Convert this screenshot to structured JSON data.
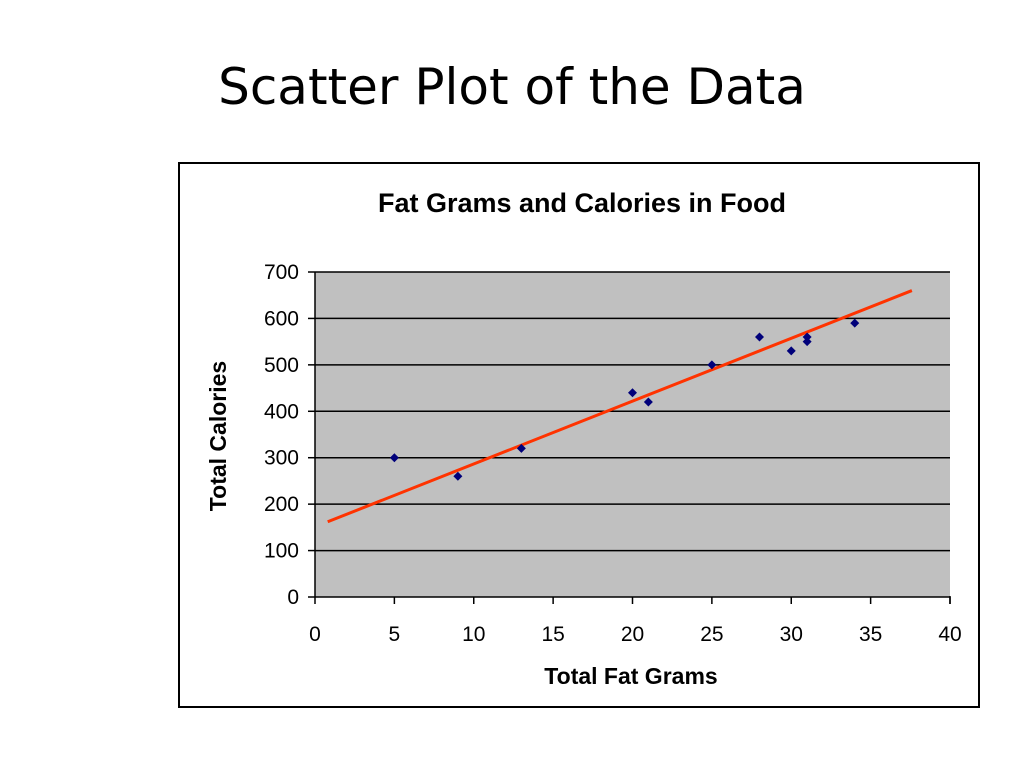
{
  "slide": {
    "title": "Scatter Plot of the Data"
  },
  "colors": {
    "plot_background": "#c0c0c0",
    "point": "#00007a",
    "trendline": "#ff3300",
    "gridline": "#000000"
  },
  "chart_data": {
    "type": "scatter",
    "title": "Fat Grams and Calories in Food",
    "xlabel": "Total Fat Grams",
    "ylabel": "Total Calories",
    "xlim": [
      0,
      40
    ],
    "ylim": [
      0,
      700
    ],
    "xticks": [
      0,
      5,
      10,
      15,
      20,
      25,
      30,
      35,
      40
    ],
    "yticks": [
      0,
      100,
      200,
      300,
      400,
      500,
      600,
      700
    ],
    "grid": "horizontal",
    "points": [
      {
        "x": 5,
        "y": 300
      },
      {
        "x": 9,
        "y": 260
      },
      {
        "x": 13,
        "y": 320
      },
      {
        "x": 20,
        "y": 440
      },
      {
        "x": 21,
        "y": 420
      },
      {
        "x": 25,
        "y": 500
      },
      {
        "x": 28,
        "y": 560
      },
      {
        "x": 30,
        "y": 530
      },
      {
        "x": 31,
        "y": 550
      },
      {
        "x": 31,
        "y": 560
      },
      {
        "x": 34,
        "y": 590
      }
    ],
    "trendline": {
      "x": [
        0.8,
        37.6
      ],
      "y": [
        162,
        660
      ]
    }
  }
}
